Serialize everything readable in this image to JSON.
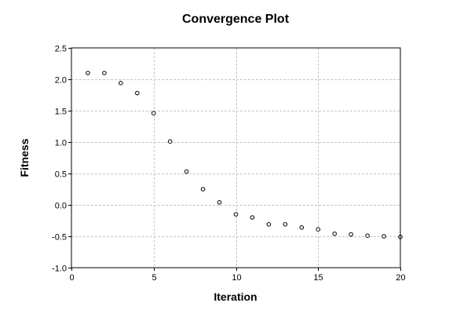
{
  "chart_data": {
    "type": "scatter",
    "title": "Convergence Plot",
    "xlabel": "Iteration",
    "ylabel": "Fitness",
    "xlim": [
      0,
      20
    ],
    "ylim": [
      -1.0,
      2.5
    ],
    "xticks": [
      0,
      5,
      10,
      15,
      20
    ],
    "yticks": [
      2.5,
      2.0,
      1.5,
      1.0,
      0.5,
      0.0,
      -0.5,
      -1.0
    ],
    "xtick_labels": [
      "0",
      "5",
      "10",
      "15",
      "20"
    ],
    "ytick_labels": [
      "2.5",
      "2.0",
      "1.5",
      "1.0",
      "0.5",
      "0.0",
      "-0.5",
      "-1.0"
    ],
    "grid": true,
    "marker": "open-circle",
    "series": [
      {
        "x": [
          1,
          2,
          3,
          4,
          5,
          6,
          7,
          8,
          9,
          10,
          11,
          12,
          13,
          14,
          15,
          16,
          17,
          18,
          19,
          20
        ],
        "y": [
          2.1,
          2.1,
          1.94,
          1.78,
          1.46,
          1.01,
          0.53,
          0.25,
          0.04,
          -0.15,
          -0.2,
          -0.31,
          -0.31,
          -0.36,
          -0.39,
          -0.46,
          -0.47,
          -0.49,
          -0.5,
          -0.51
        ]
      }
    ]
  }
}
